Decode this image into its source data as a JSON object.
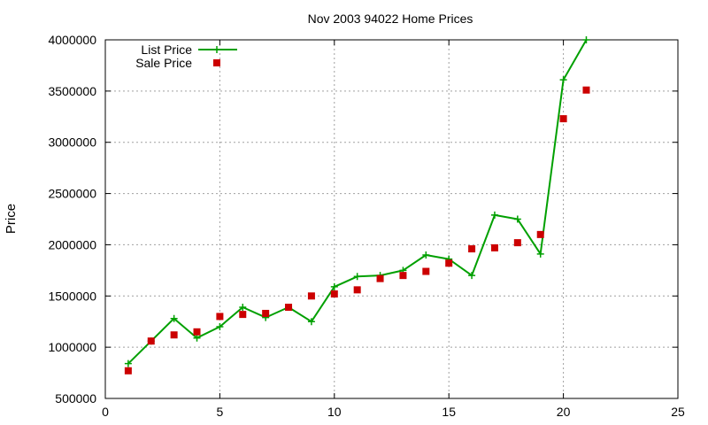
{
  "chart_data": {
    "type": "line",
    "title": "Nov 2003 94022 Home Prices",
    "xlabel": "",
    "ylabel": "Price",
    "xlim": [
      0,
      25
    ],
    "ylim": [
      500000,
      4000000
    ],
    "x_ticks": [
      0,
      5,
      10,
      15,
      20,
      25
    ],
    "y_ticks": [
      500000,
      1000000,
      1500000,
      2000000,
      2500000,
      3000000,
      3500000,
      4000000
    ],
    "x_tick_labels": [
      "0",
      "5",
      "10",
      "15",
      "20",
      "25"
    ],
    "y_tick_labels": [
      "500000",
      "1000000",
      "1500000",
      "2000000",
      "2500000",
      "3000000",
      "3500000",
      "4000000"
    ],
    "grid": true,
    "legend_position": "top-left",
    "series": [
      {
        "name": "List Price",
        "style": "linespoints",
        "marker": "plus",
        "color": "#00a000",
        "x": [
          1,
          2,
          3,
          4,
          5,
          6,
          7,
          8,
          9,
          10,
          11,
          12,
          13,
          14,
          15,
          16,
          17,
          18,
          19,
          20,
          21
        ],
        "y": [
          840000,
          1060000,
          1280000,
          1090000,
          1200000,
          1390000,
          1290000,
          1390000,
          1250000,
          1590000,
          1690000,
          1700000,
          1750000,
          1900000,
          1860000,
          1700000,
          2290000,
          2250000,
          1910000,
          3610000,
          4000000
        ]
      },
      {
        "name": "Sale Price",
        "style": "points",
        "marker": "square",
        "color": "#cc0000",
        "x": [
          1,
          2,
          3,
          4,
          5,
          6,
          7,
          8,
          9,
          10,
          11,
          12,
          13,
          14,
          15,
          16,
          17,
          18,
          19,
          20,
          21
        ],
        "y": [
          770000,
          1060000,
          1120000,
          1150000,
          1300000,
          1320000,
          1330000,
          1390000,
          1500000,
          1520000,
          1560000,
          1670000,
          1700000,
          1740000,
          1820000,
          1960000,
          1970000,
          2020000,
          2100000,
          3230000,
          3510000
        ]
      }
    ]
  }
}
